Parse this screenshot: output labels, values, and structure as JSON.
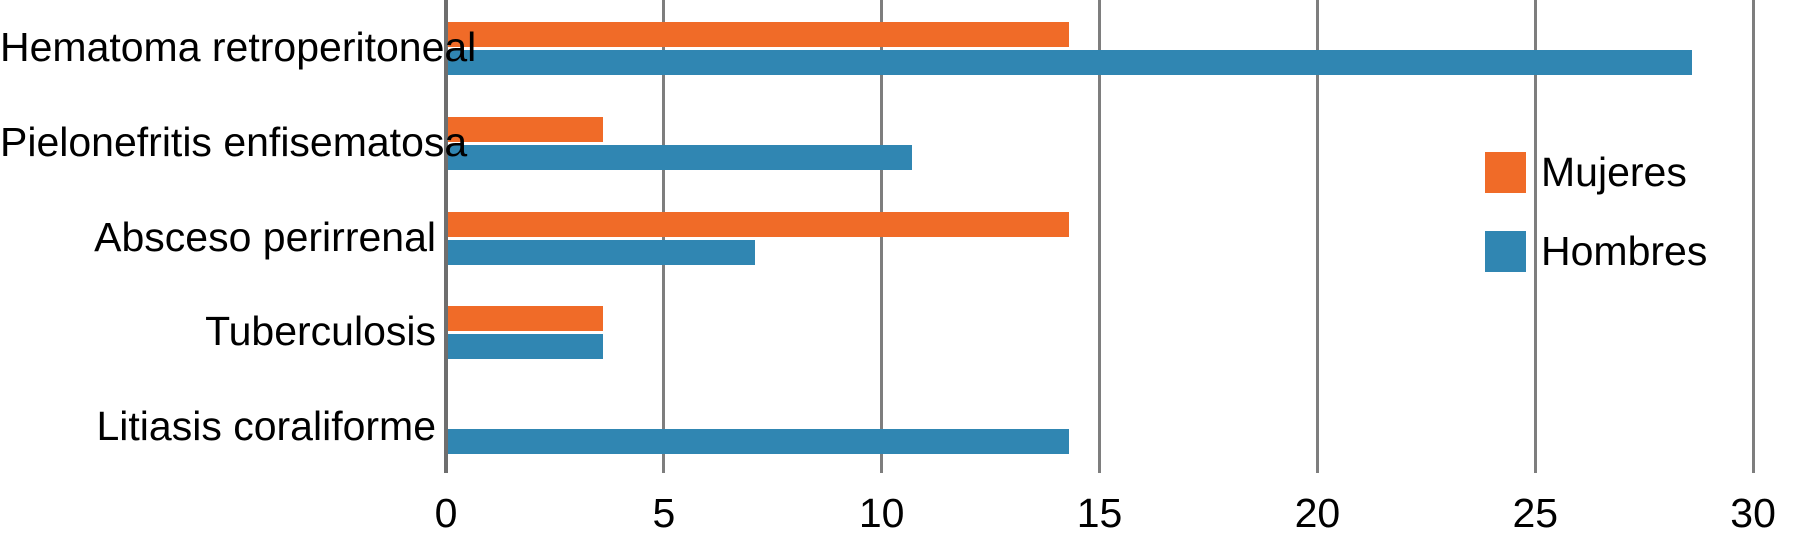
{
  "chart_data": {
    "type": "bar",
    "orientation": "horizontal",
    "title": "",
    "xlabel": "",
    "ylabel": "",
    "categories": [
      "Hematoma retroperitoneal",
      "Pielonefritis enfisematosa",
      "Absceso perirrenal",
      "Tuberculosis",
      "Litiasis coraliforme"
    ],
    "series": [
      {
        "name": "Mujeres",
        "color": "#f06b28",
        "values": [
          14.3,
          3.6,
          14.3,
          3.6,
          0
        ]
      },
      {
        "name": "Hombres",
        "color": "#3086b2",
        "values": [
          28.6,
          10.7,
          7.1,
          3.6,
          14.3
        ]
      }
    ],
    "x_ticks": [
      0,
      5,
      10,
      15,
      20,
      25,
      30
    ],
    "x_tick_labels": [
      "0",
      "5",
      "10",
      "15",
      "20",
      "25",
      "30"
    ],
    "xlim": [
      0,
      30
    ],
    "grid": true,
    "gridline_color": "#7e7e7e",
    "axis_color": "#6e6e6e",
    "legend_position": "right-inside",
    "background": "#ffffff",
    "text_color": "#000000"
  },
  "legend": {
    "items": [
      {
        "label": "Mujeres",
        "color": "#f06b28"
      },
      {
        "label": "Hombres",
        "color": "#3086b2"
      }
    ]
  }
}
